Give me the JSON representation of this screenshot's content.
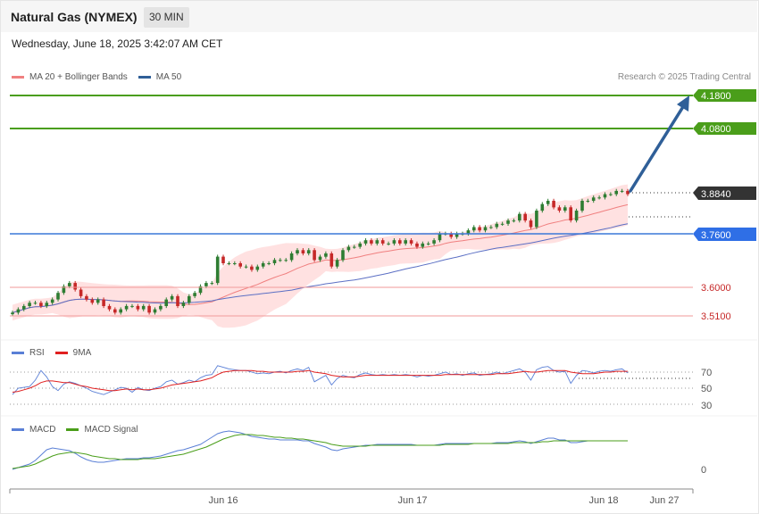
{
  "header": {
    "title": "Natural Gas (NYMEX)",
    "timeframe": "30 MIN",
    "datetime": "Wednesday, June 18, 2025 3:42:07 AM CET",
    "credit": "Research © 2025 Trading Central"
  },
  "legends": {
    "price": [
      {
        "label": "MA 20 + Bollinger Bands",
        "color": "#f08080"
      },
      {
        "label": "MA 50",
        "color": "#2f5f98"
      }
    ],
    "rsi": [
      {
        "label": "RSI",
        "color": "#5a7fd6"
      },
      {
        "label": "9MA",
        "color": "#e02020"
      }
    ],
    "macd": [
      {
        "label": "MACD",
        "color": "#5a7fd6"
      },
      {
        "label": "MACD Signal",
        "color": "#4a9e1a"
      }
    ]
  },
  "colors": {
    "bull_candle": "#2e7d32",
    "bear_candle": "#c62828",
    "band_fill": "#ffd7d7",
    "ma20": "#f08080",
    "ma50": "#5b6fc4",
    "target_line": "#4a9e1a",
    "pivot_line": "#3a78d8",
    "support_line": "#f29a9a",
    "support_text": "#c62828",
    "current_tag": "#333333",
    "arrow": "#2f5f98",
    "rsi": "#5a7fd6",
    "rsi_ma": "#e02020",
    "macd": "#5a7fd6",
    "macd_signal": "#4a9e1a"
  },
  "levels": {
    "targets": [
      "4.1800",
      "4.0800"
    ],
    "current": "3.8840",
    "pivot": "3.7600",
    "supports": [
      "3.6000",
      "3.5100"
    ]
  },
  "rsi_ticks": [
    "70",
    "50",
    "30"
  ],
  "macd_ticks": [
    "0"
  ],
  "x_labels": [
    "Jun 16",
    "Jun 17",
    "Jun 18",
    "Jun 27"
  ],
  "chart_data": {
    "type": "candlestick",
    "instrument": "Natural Gas (NYMEX)",
    "interval": "30 MIN",
    "x_axis": [
      "Jun 16",
      "Jun 17",
      "Jun 18",
      "Jun 27"
    ],
    "ylim": [
      3.49,
      4.21
    ],
    "close": [
      3.52,
      3.53,
      3.54,
      3.55,
      3.55,
      3.54,
      3.55,
      3.56,
      3.58,
      3.6,
      3.61,
      3.59,
      3.57,
      3.56,
      3.55,
      3.56,
      3.54,
      3.53,
      3.52,
      3.53,
      3.54,
      3.54,
      3.53,
      3.54,
      3.52,
      3.53,
      3.54,
      3.56,
      3.57,
      3.54,
      3.55,
      3.57,
      3.58,
      3.6,
      3.61,
      3.61,
      3.69,
      3.67,
      3.67,
      3.67,
      3.66,
      3.66,
      3.65,
      3.66,
      3.67,
      3.67,
      3.68,
      3.68,
      3.68,
      3.7,
      3.71,
      3.7,
      3.71,
      3.68,
      3.69,
      3.7,
      3.66,
      3.68,
      3.71,
      3.72,
      3.72,
      3.73,
      3.74,
      3.73,
      3.74,
      3.73,
      3.73,
      3.74,
      3.73,
      3.74,
      3.73,
      3.72,
      3.73,
      3.73,
      3.74,
      3.76,
      3.76,
      3.75,
      3.76,
      3.76,
      3.77,
      3.78,
      3.77,
      3.78,
      3.78,
      3.79,
      3.79,
      3.8,
      3.8,
      3.82,
      3.8,
      3.78,
      3.83,
      3.85,
      3.86,
      3.84,
      3.83,
      3.84,
      3.8,
      3.83,
      3.86,
      3.86,
      3.87,
      3.87,
      3.88,
      3.88,
      3.89,
      3.89,
      3.88
    ],
    "rsi": [
      42,
      50,
      51,
      52,
      60,
      72,
      64,
      52,
      47,
      55,
      58,
      56,
      53,
      50,
      46,
      44,
      42,
      45,
      48,
      51,
      50,
      45,
      51,
      48,
      47,
      50,
      52,
      58,
      60,
      55,
      57,
      60,
      58,
      63,
      66,
      67,
      78,
      76,
      74,
      73,
      72,
      72,
      70,
      68,
      69,
      68,
      70,
      71,
      69,
      72,
      74,
      72,
      76,
      58,
      62,
      66,
      54,
      62,
      66,
      64,
      63,
      67,
      69,
      67,
      66,
      67,
      66,
      67,
      66,
      67,
      66,
      64,
      66,
      65,
      66,
      68,
      70,
      67,
      68,
      66,
      68,
      69,
      66,
      67,
      68,
      70,
      68,
      70,
      72,
      74,
      70,
      60,
      73,
      76,
      77,
      72,
      70,
      71,
      56,
      66,
      72,
      71,
      69,
      71,
      72,
      71,
      73,
      74,
      69
    ],
    "rsi_ma": [
      45,
      46,
      48,
      50,
      53,
      57,
      59,
      59,
      58,
      57,
      57,
      55,
      53,
      52,
      50,
      49,
      48,
      47,
      47,
      48,
      49,
      48,
      49,
      48,
      48,
      49,
      50,
      52,
      54,
      55,
      56,
      57,
      58,
      59,
      61,
      63,
      67,
      70,
      71,
      72,
      72,
      72,
      72,
      71,
      71,
      70,
      70,
      70,
      70,
      70,
      71,
      71,
      72,
      70,
      69,
      68,
      66,
      65,
      64,
      64,
      64,
      65,
      66,
      66,
      66,
      66,
      66,
      66,
      66,
      66,
      66,
      66,
      66,
      66,
      66,
      66,
      67,
      67,
      67,
      67,
      67,
      67,
      67,
      67,
      67,
      68,
      68,
      68,
      69,
      70,
      71,
      70,
      70,
      71,
      72,
      72,
      72,
      72,
      70,
      69,
      68,
      68,
      68,
      69,
      70,
      70,
      71,
      71,
      71
    ],
    "macd": [
      -0.02,
      -0.018,
      -0.016,
      -0.014,
      -0.01,
      -0.004,
      0.002,
      0.004,
      0.003,
      0.002,
      0.001,
      -0.002,
      -0.006,
      -0.009,
      -0.011,
      -0.012,
      -0.012,
      -0.011,
      -0.01,
      -0.009,
      -0.008,
      -0.008,
      -0.008,
      -0.007,
      -0.007,
      -0.006,
      -0.005,
      -0.003,
      -0.001,
      0.001,
      0.002,
      0.004,
      0.006,
      0.008,
      0.012,
      0.016,
      0.02,
      0.022,
      0.023,
      0.022,
      0.021,
      0.019,
      0.017,
      0.016,
      0.015,
      0.014,
      0.014,
      0.013,
      0.013,
      0.013,
      0.013,
      0.012,
      0.012,
      0.009,
      0.007,
      0.005,
      0.002,
      0.001,
      0.003,
      0.004,
      0.005,
      0.006,
      0.007,
      0.007,
      0.008,
      0.008,
      0.008,
      0.008,
      0.008,
      0.008,
      0.008,
      0.007,
      0.007,
      0.007,
      0.007,
      0.008,
      0.009,
      0.009,
      0.009,
      0.009,
      0.009,
      0.009,
      0.009,
      0.009,
      0.009,
      0.01,
      0.01,
      0.01,
      0.011,
      0.012,
      0.011,
      0.009,
      0.011,
      0.013,
      0.015,
      0.015,
      0.013,
      0.013,
      0.01,
      0.01,
      0.011,
      0.012,
      0.012,
      0.012,
      0.012,
      0.012,
      0.012,
      0.012,
      0.012
    ],
    "macd_signal": [
      -0.019,
      -0.018,
      -0.017,
      -0.016,
      -0.014,
      -0.011,
      -0.008,
      -0.005,
      -0.003,
      -0.002,
      -0.001,
      -0.001,
      -0.002,
      -0.003,
      -0.005,
      -0.006,
      -0.007,
      -0.008,
      -0.008,
      -0.009,
      -0.009,
      -0.009,
      -0.009,
      -0.008,
      -0.008,
      -0.008,
      -0.007,
      -0.006,
      -0.005,
      -0.004,
      -0.003,
      -0.001,
      0.001,
      0.003,
      0.005,
      0.008,
      0.011,
      0.014,
      0.016,
      0.018,
      0.019,
      0.019,
      0.019,
      0.018,
      0.018,
      0.017,
      0.016,
      0.016,
      0.015,
      0.015,
      0.014,
      0.014,
      0.013,
      0.012,
      0.011,
      0.01,
      0.008,
      0.007,
      0.006,
      0.006,
      0.006,
      0.006,
      0.006,
      0.007,
      0.007,
      0.007,
      0.007,
      0.007,
      0.007,
      0.007,
      0.007,
      0.007,
      0.007,
      0.007,
      0.007,
      0.007,
      0.008,
      0.008,
      0.008,
      0.008,
      0.008,
      0.009,
      0.009,
      0.009,
      0.009,
      0.009,
      0.009,
      0.009,
      0.01,
      0.01,
      0.01,
      0.01,
      0.01,
      0.011,
      0.011,
      0.012,
      0.012,
      0.012,
      0.012,
      0.012,
      0.012,
      0.012,
      0.012,
      0.012,
      0.012,
      0.012,
      0.012,
      0.012,
      0.012
    ]
  }
}
